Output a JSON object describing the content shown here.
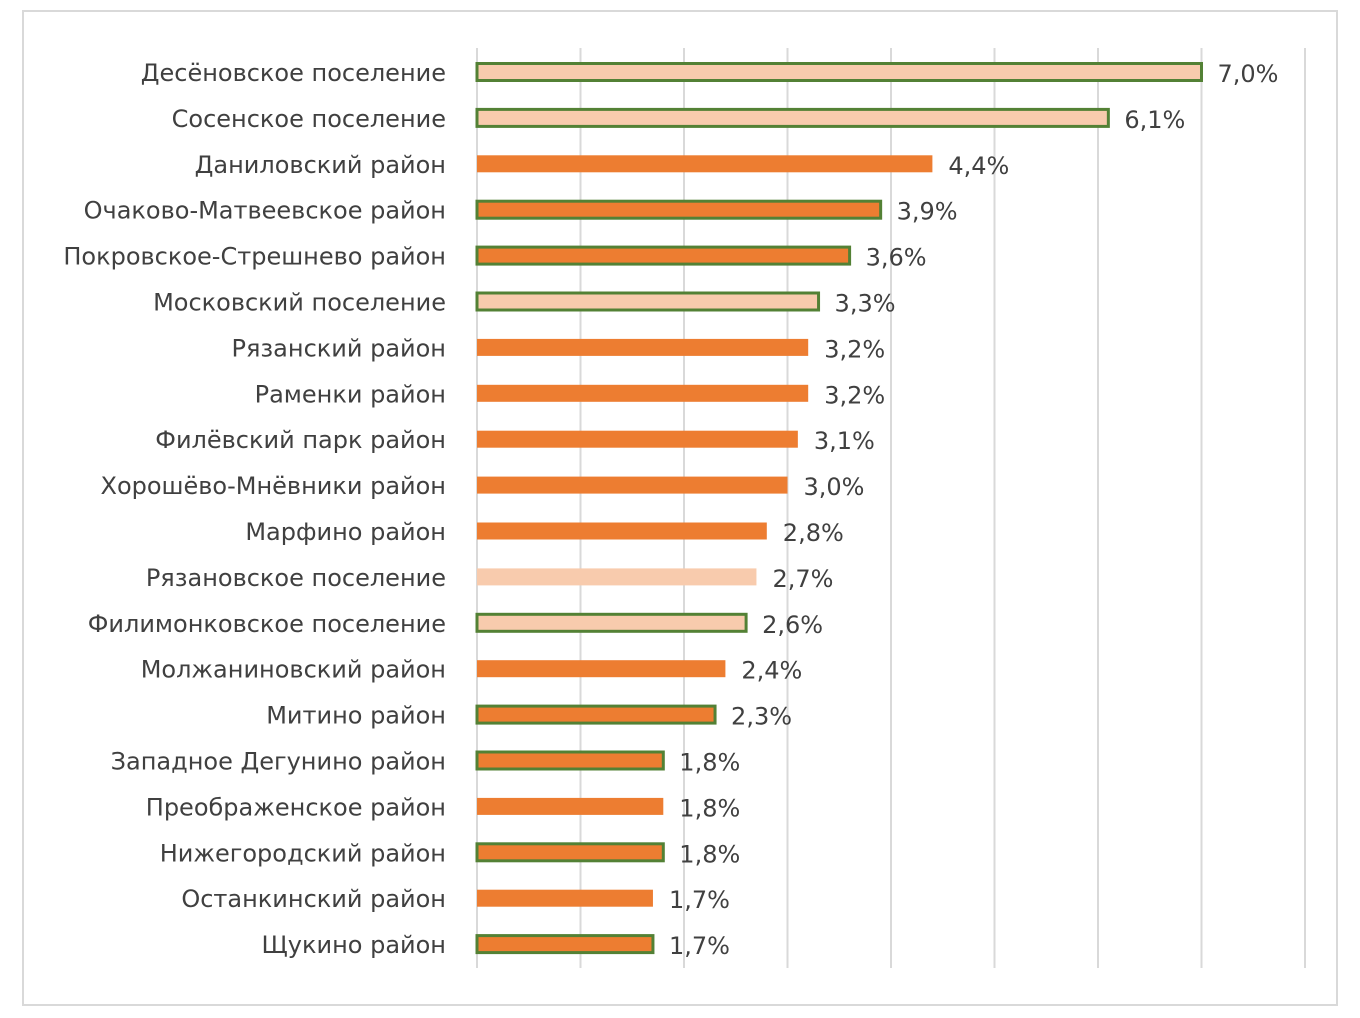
{
  "chart_data": {
    "type": "bar",
    "orientation": "horizontal",
    "title": "",
    "xlabel": "",
    "ylabel": "",
    "xlim": [
      0,
      8
    ],
    "grid": "vertical",
    "legend": "none",
    "colors": {
      "fill_dark": "#ed7d31",
      "fill_light": "#f8cbad",
      "outline": "#538135",
      "grid": "#d9d9d9",
      "text": "#404040"
    },
    "categories": [
      "Десёновское поселение",
      "Сосенское поселение",
      "Даниловский район",
      "Очаково-Матвеевское район",
      "Покровское-Стрешнево район",
      "Московский поселение",
      "Рязанский район",
      "Раменки район",
      "Филёвский парк район",
      "Хорошёво-Мнёвники район",
      "Марфино район",
      "Рязановское поселение",
      "Филимонковское поселение",
      "Молжаниновский район",
      "Митино район",
      "Западное Дегунино район",
      "Преображенское район",
      "Нижегородский район",
      "Останкинский район",
      "Щукино район"
    ],
    "values": [
      7.0,
      6.1,
      4.4,
      3.9,
      3.6,
      3.3,
      3.2,
      3.2,
      3.1,
      3.0,
      2.8,
      2.7,
      2.6,
      2.4,
      2.3,
      1.8,
      1.8,
      1.8,
      1.7,
      1.7
    ],
    "data_labels": [
      "7,0%",
      "6,1%",
      "4,4%",
      "3,9%",
      "3,6%",
      "3,3%",
      "3,2%",
      "3,2%",
      "3,1%",
      "3,0%",
      "2,8%",
      "2,7%",
      "2,6%",
      "2,4%",
      "2,3%",
      "1,8%",
      "1,8%",
      "1,8%",
      "1,7%",
      "1,7%"
    ],
    "fill": [
      "light",
      "light",
      "dark",
      "dark",
      "dark",
      "light",
      "dark",
      "dark",
      "dark",
      "dark",
      "dark",
      "light",
      "light",
      "dark",
      "dark",
      "dark",
      "dark",
      "dark",
      "dark",
      "dark"
    ],
    "outlined": [
      true,
      true,
      false,
      true,
      true,
      true,
      false,
      false,
      false,
      false,
      false,
      false,
      true,
      false,
      true,
      true,
      false,
      true,
      false,
      true
    ]
  }
}
